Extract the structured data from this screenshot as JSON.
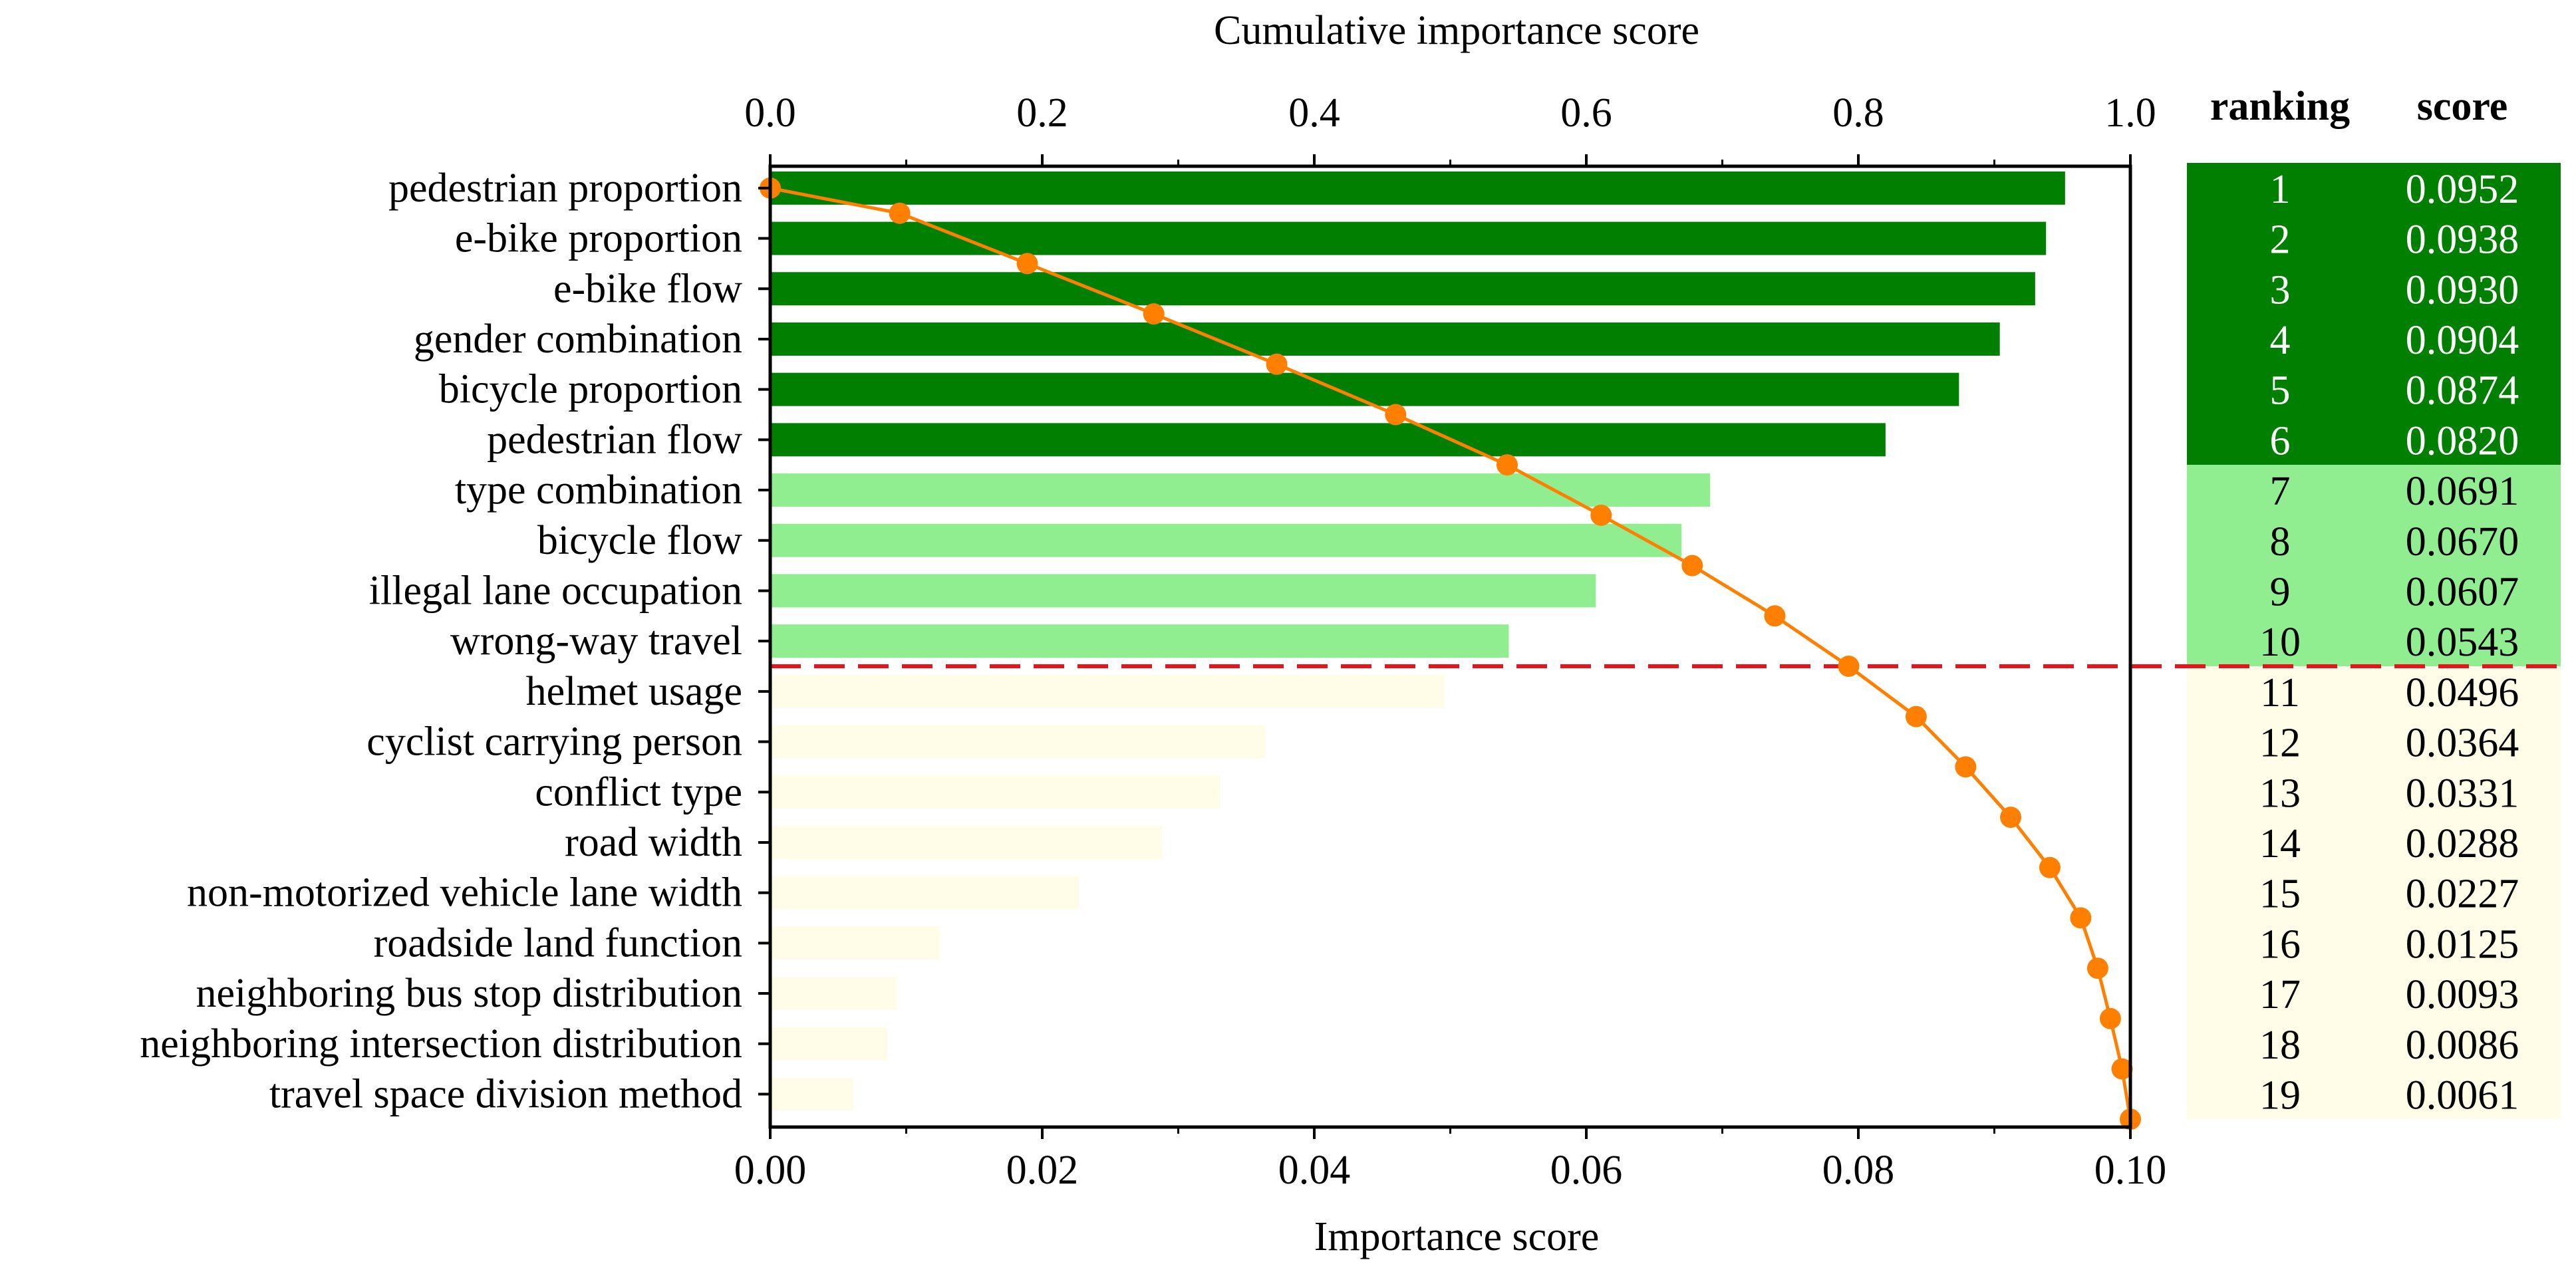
{
  "chart_data": {
    "type": "bar",
    "orientation": "horizontal",
    "title": "",
    "xlabel": "Importance score",
    "xlim": [
      0,
      0.1
    ],
    "xticks": [
      "0.00",
      "0.02",
      "0.04",
      "0.06",
      "0.08",
      "0.10"
    ],
    "x2label": "Cumulative importance score",
    "x2lim": [
      0,
      1.0
    ],
    "x2ticks": [
      "0.0",
      "0.2",
      "0.4",
      "0.6",
      "0.8",
      "1.0"
    ],
    "categories": [
      "pedestrian proportion",
      "e-bike proportion",
      "e-bike flow",
      "gender combination",
      "bicycle proportion",
      "pedestrian flow",
      "type combination",
      "bicycle flow",
      "illegal lane occupation",
      "wrong-way travel",
      "helmet usage",
      "cyclist carrying person",
      "conflict type",
      "road width",
      "non-motorized vehicle lane width",
      "roadside land function",
      "neighboring bus stop distribution",
      "neighboring intersection distribution",
      "travel space division method"
    ],
    "values": [
      0.0952,
      0.0938,
      0.093,
      0.0904,
      0.0874,
      0.082,
      0.0691,
      0.067,
      0.0607,
      0.0543,
      0.0496,
      0.0364,
      0.0331,
      0.0288,
      0.0227,
      0.0125,
      0.0093,
      0.0086,
      0.0061
    ],
    "groups": [
      {
        "from": 1,
        "to": 6,
        "color": "#007f00"
      },
      {
        "from": 7,
        "to": 10,
        "color": "#90ee90"
      },
      {
        "from": 11,
        "to": 19,
        "color": "#fffde7"
      }
    ],
    "cumulative_series": {
      "name": "Cumulative importance score",
      "color": "#ff8000",
      "values": [
        0.0,
        0.0952,
        0.189,
        0.282,
        0.3724,
        0.4598,
        0.5418,
        0.6109,
        0.6779,
        0.7386,
        0.7929,
        0.8425,
        0.8789,
        0.912,
        0.9408,
        0.9635,
        0.976,
        0.9853,
        0.9939,
        1.0
      ]
    },
    "threshold_after_rank": 10,
    "threshold_color": "#e8141c",
    "table": {
      "headers": [
        "ranking",
        "score"
      ],
      "rankings": [
        "1",
        "2",
        "3",
        "4",
        "5",
        "6",
        "7",
        "8",
        "9",
        "10",
        "11",
        "12",
        "13",
        "14",
        "15",
        "16",
        "17",
        "18",
        "19"
      ],
      "scores": [
        "0.0952",
        "0.0938",
        "0.0930",
        "0.0904",
        "0.0874",
        "0.0820",
        "0.0691",
        "0.0670",
        "0.0607",
        "0.0543",
        "0.0496",
        "0.0364",
        "0.0331",
        "0.0288",
        "0.0227",
        "0.0125",
        "0.0093",
        "0.0086",
        "0.0061"
      ]
    }
  }
}
